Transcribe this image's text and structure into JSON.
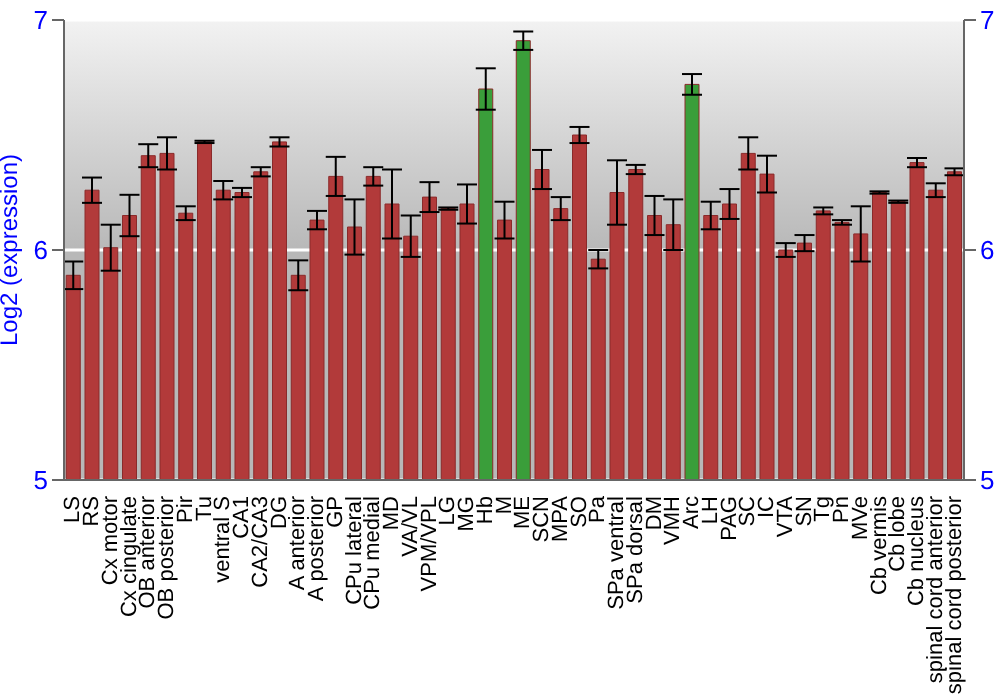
{
  "chart_data": {
    "type": "bar",
    "ylabel": "Log2 (expression)",
    "categories": [
      "LS",
      "RS",
      "Cx motor",
      "Cx cingulate",
      "OB anterior",
      "OB posterior",
      "Pir",
      "Tu",
      "ventral S",
      "CA1",
      "CA2/CA3",
      "DG",
      "A anterior",
      "A posterior",
      "GP",
      "CPu lateral",
      "CPu medial",
      "MD",
      "VA/VL",
      "VPM/VPL",
      "LG",
      "MG",
      "Hb",
      "M",
      "ME",
      "SCN",
      "MPA",
      "SO",
      "Pa",
      "SPa ventral",
      "SPa dorsal",
      "DM",
      "VMH",
      "Arc",
      "LH",
      "PAG",
      "SC",
      "IC",
      "VTA",
      "SN",
      "Tg",
      "Pn",
      "MVe",
      "Cb vermis",
      "Cb lobe",
      "Cb nucleus",
      "spinal cord anterior",
      "spinal cord posterior"
    ],
    "values": [
      5.89,
      6.26,
      6.01,
      6.15,
      6.41,
      6.42,
      6.16,
      6.47,
      6.26,
      6.25,
      6.34,
      6.47,
      5.89,
      6.13,
      6.32,
      6.1,
      6.32,
      6.2,
      6.06,
      6.23,
      6.18,
      6.2,
      6.7,
      6.13,
      6.91,
      6.35,
      6.18,
      6.5,
      5.96,
      6.25,
      6.35,
      6.15,
      6.11,
      6.72,
      6.15,
      6.2,
      6.42,
      6.33,
      6.0,
      6.03,
      6.17,
      6.12,
      6.07,
      6.25,
      6.21,
      6.38,
      6.26,
      6.34
    ],
    "errors": [
      0.06,
      0.055,
      0.1,
      0.09,
      0.05,
      0.07,
      0.03,
      0.005,
      0.04,
      0.02,
      0.02,
      0.02,
      0.065,
      0.04,
      0.085,
      0.12,
      0.04,
      0.15,
      0.09,
      0.065,
      0.005,
      0.085,
      0.09,
      0.08,
      0.04,
      0.085,
      0.05,
      0.035,
      0.04,
      0.14,
      0.02,
      0.085,
      0.11,
      0.045,
      0.06,
      0.065,
      0.07,
      0.08,
      0.03,
      0.035,
      0.015,
      0.01,
      0.12,
      0.005,
      0.005,
      0.02,
      0.03,
      0.015
    ],
    "colors": [
      "#b23a3a",
      "#b23a3a",
      "#b23a3a",
      "#b23a3a",
      "#b23a3a",
      "#b23a3a",
      "#b23a3a",
      "#b23a3a",
      "#b23a3a",
      "#b23a3a",
      "#b23a3a",
      "#b23a3a",
      "#b23a3a",
      "#b23a3a",
      "#b23a3a",
      "#b23a3a",
      "#b23a3a",
      "#b23a3a",
      "#b23a3a",
      "#b23a3a",
      "#b23a3a",
      "#b23a3a",
      "#3a9e3a",
      "#b23a3a",
      "#3a9e3a",
      "#b23a3a",
      "#b23a3a",
      "#b23a3a",
      "#b23a3a",
      "#b23a3a",
      "#b23a3a",
      "#b23a3a",
      "#b23a3a",
      "#3a9e3a",
      "#b23a3a",
      "#b23a3a",
      "#b23a3a",
      "#b23a3a",
      "#b23a3a",
      "#b23a3a",
      "#b23a3a",
      "#b23a3a",
      "#b23a3a",
      "#b23a3a",
      "#b23a3a",
      "#b23a3a",
      "#b23a3a",
      "#b23a3a"
    ],
    "ylim": [
      5,
      7
    ],
    "yticks": [
      5,
      6,
      7
    ],
    "y2lim": [
      5,
      7
    ],
    "y2ticks": [
      5,
      6,
      7
    ],
    "grid": "y"
  }
}
